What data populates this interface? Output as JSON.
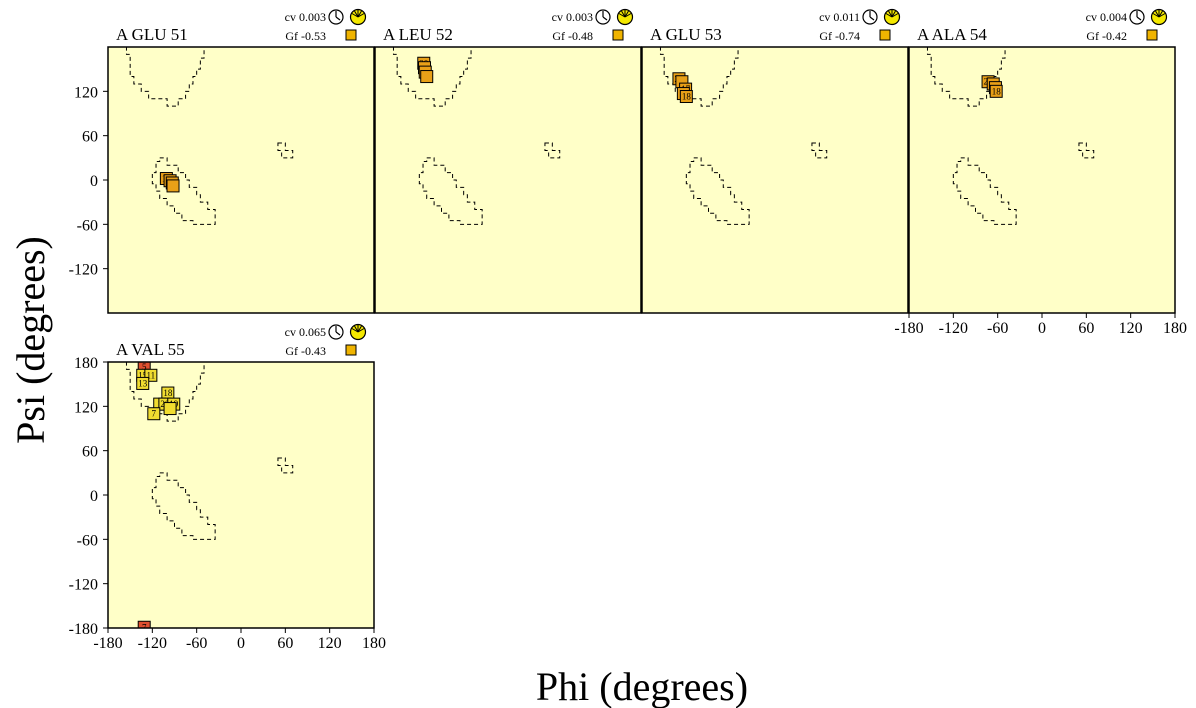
{
  "axes": {
    "xlabel": "Phi (degrees)",
    "ylabel": "Psi (degrees)"
  },
  "chart_data": [
    {
      "type": "scatter",
      "title": "A GLU 51",
      "cv": "cv 0.003",
      "gf": "Gf -0.53",
      "gf_color": "#f0b400",
      "xlim": [
        -180,
        180
      ],
      "ylim": [
        -180,
        180
      ],
      "xticks": [],
      "yticks": [
        "120",
        "60",
        "0",
        "-60",
        "-120"
      ],
      "points": [
        {
          "label": "19",
          "phi": -101,
          "psi": 2,
          "color": "#e8a018"
        },
        {
          "label": "",
          "phi": -96,
          "psi": -1,
          "color": "#e8a018"
        },
        {
          "label": "20",
          "phi": -93,
          "psi": -4,
          "color": "#e8a018"
        },
        {
          "label": "",
          "phi": -92,
          "psi": -8,
          "color": "#e8a018"
        }
      ]
    },
    {
      "type": "scatter",
      "title": "A LEU 52",
      "cv": "cv 0.003",
      "gf": "Gf -0.48",
      "gf_color": "#f0b400",
      "xlim": [
        -180,
        180
      ],
      "ylim": [
        -180,
        180
      ],
      "xticks": [],
      "yticks": [],
      "points": [
        {
          "label": "20",
          "phi": -114,
          "psi": 158,
          "color": "#e8a018"
        },
        {
          "label": "",
          "phi": -113,
          "psi": 152,
          "color": "#e8a018"
        },
        {
          "label": "",
          "phi": -112,
          "psi": 146,
          "color": "#e8a018"
        },
        {
          "label": "",
          "phi": -110,
          "psi": 140,
          "color": "#e8a018"
        }
      ]
    },
    {
      "type": "scatter",
      "title": "A GLU 53",
      "cv": "cv 0.011",
      "gf": "Gf -0.74",
      "gf_color": "#f0b400",
      "xlim": [
        -180,
        180
      ],
      "ylim": [
        -180,
        180
      ],
      "xticks": [],
      "yticks": [],
      "points": [
        {
          "label": "20",
          "phi": -130,
          "psi": 137,
          "color": "#e8a018"
        },
        {
          "label": "",
          "phi": -126,
          "psi": 133,
          "color": "#e8a018"
        },
        {
          "label": "17",
          "phi": -121,
          "psi": 123,
          "color": "#e8a018"
        },
        {
          "label": "",
          "phi": -124,
          "psi": 117,
          "color": "#e8a018"
        },
        {
          "label": "18",
          "phi": -120,
          "psi": 113,
          "color": "#e8a018"
        }
      ]
    },
    {
      "type": "scatter",
      "title": "A ALA 54",
      "cv": "cv 0.004",
      "gf": "Gf -0.42",
      "gf_color": "#f0b400",
      "xlim": [
        -180,
        180
      ],
      "ylim": [
        -180,
        180
      ],
      "xticks": [
        "-180",
        "-120",
        "-60",
        "0",
        "60",
        "120",
        "180"
      ],
      "yticks": [],
      "points": [
        {
          "label": "20",
          "phi": -73,
          "psi": 133,
          "color": "#e8a018"
        },
        {
          "label": "",
          "phi": -66,
          "psi": 130,
          "color": "#e8a018"
        },
        {
          "label": "",
          "phi": -63,
          "psi": 125,
          "color": "#e8a018"
        },
        {
          "label": "18",
          "phi": -62,
          "psi": 120,
          "color": "#e8a018"
        }
      ]
    },
    {
      "type": "scatter",
      "title": "A VAL 55",
      "cv": "cv 0.065",
      "gf": "Gf -0.43",
      "gf_color": "#f0b400",
      "xlim": [
        -180,
        180
      ],
      "ylim": [
        -180,
        180
      ],
      "xticks": [
        "-180",
        "-120",
        "-60",
        "0",
        "60",
        "120",
        "180"
      ],
      "yticks": [
        "180",
        "120",
        "60",
        "0",
        "-60",
        "-120",
        "-180"
      ],
      "points": [
        {
          "label": "5",
          "phi": -131,
          "psi": 173,
          "color": "#e05030"
        },
        {
          "label": "15",
          "phi": -133,
          "psi": 162,
          "color": "#f0dc30"
        },
        {
          "label": "11",
          "phi": -122,
          "psi": 162,
          "color": "#f0dc30"
        },
        {
          "label": "13",
          "phi": -133,
          "psi": 151,
          "color": "#f0dc30"
        },
        {
          "label": "18",
          "phi": -99,
          "psi": 138,
          "color": "#f0dc30"
        },
        {
          "label": "1",
          "phi": -110,
          "psi": 123,
          "color": "#f0dc30"
        },
        {
          "label": "20",
          "phi": -103,
          "psi": 123,
          "color": "#f0dc30"
        },
        {
          "label": "19",
          "phi": -91,
          "psi": 123,
          "color": "#f0dc30"
        },
        {
          "label": "",
          "phi": -96,
          "psi": 117,
          "color": "#f0dc30"
        },
        {
          "label": "7",
          "phi": -118,
          "psi": 110,
          "color": "#f0dc30"
        },
        {
          "label": "7",
          "phi": -131,
          "psi": -179,
          "color": "#e05030"
        }
      ]
    }
  ]
}
